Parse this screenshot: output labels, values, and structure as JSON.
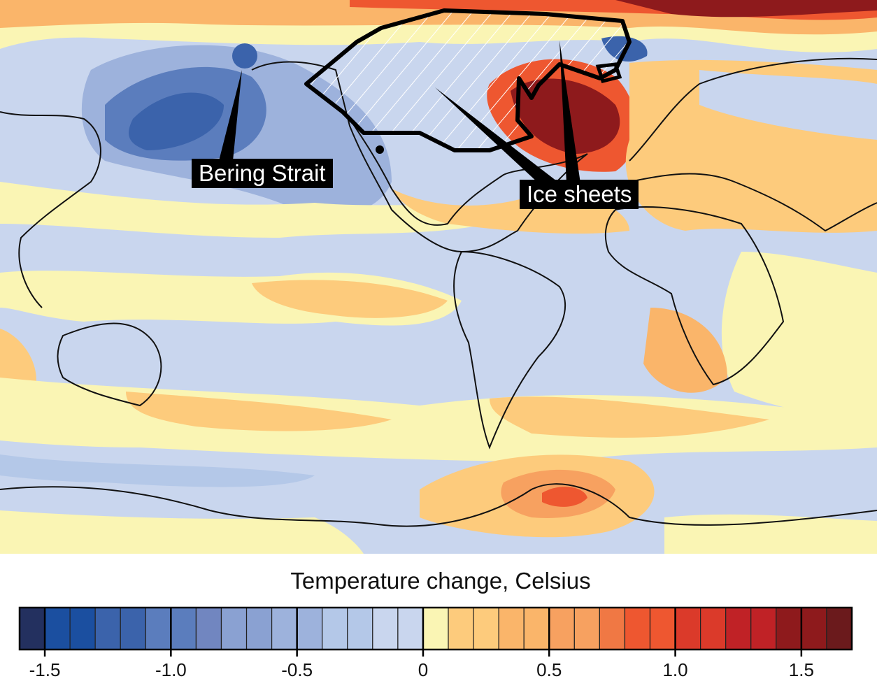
{
  "map": {
    "annotations": {
      "bering_strait": "Bering Strait",
      "ice_sheets": "Ice sheets"
    }
  },
  "colorbar": {
    "title": "Temperature change, Celsius",
    "min": -1.6,
    "step": 0.1,
    "colors": [
      "#23305f",
      "#1b4fa0",
      "#1b4fa0",
      "#3b63ab",
      "#3b63ab",
      "#5b7dbd",
      "#5b7dbd",
      "#7186c0",
      "#8aa1d2",
      "#8aa1d2",
      "#9db2dc",
      "#9db2dc",
      "#b4c8e8",
      "#b4c8e8",
      "#c9d6ee",
      "#c9d6ee",
      "#faf5b4",
      "#fdcb7c",
      "#fdcb7c",
      "#fab56a",
      "#fab56a",
      "#f7a160",
      "#f7a160",
      "#f07844",
      "#ee5730",
      "#ee5730",
      "#db3a2a",
      "#db3a2a",
      "#c02226",
      "#c02226",
      "#8e1a1c",
      "#8e1a1c",
      "#6b1a1c"
    ],
    "ticks": [
      {
        "value": -1.5,
        "label": "-1.5"
      },
      {
        "value": -1.0,
        "label": "-1.0"
      },
      {
        "value": -0.5,
        "label": "-0.5"
      },
      {
        "value": 0,
        "label": "0"
      },
      {
        "value": 0.5,
        "label": "0.5"
      },
      {
        "value": 1.0,
        "label": "1.0"
      },
      {
        "value": 1.5,
        "label": "1.5"
      }
    ]
  }
}
